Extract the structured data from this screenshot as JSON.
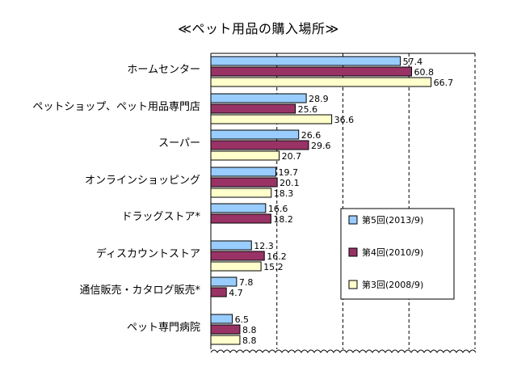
{
  "chart_data": {
    "type": "bar",
    "orientation": "horizontal",
    "title": "≪ペット用品の購入場所≫",
    "categories": [
      "ホームセンター",
      "ペットショップ、ペット用品専門店",
      "スーパー",
      "オンラインショッピング",
      "ドラッグストア*",
      "ディスカウントストア",
      "通信販売・カタログ販売*",
      "ペット専門病院"
    ],
    "series": [
      {
        "name": "第5回(2013/9)",
        "color": "#99CCFF",
        "values": [
          57.4,
          28.9,
          26.6,
          19.7,
          16.6,
          12.3,
          7.8,
          6.5
        ]
      },
      {
        "name": "第4回(2010/9)",
        "color": "#993366",
        "values": [
          60.8,
          25.6,
          29.6,
          20.1,
          18.2,
          16.2,
          4.7,
          8.8
        ]
      },
      {
        "name": "第3回(2008/9)",
        "color": "#FFFFCC",
        "values": [
          66.7,
          36.6,
          20.7,
          18.3,
          null,
          15.2,
          null,
          8.8
        ]
      }
    ],
    "xlim": [
      0,
      80
    ],
    "gridlines": [
      20,
      40,
      60
    ],
    "grid": true,
    "legend_position": "right"
  }
}
